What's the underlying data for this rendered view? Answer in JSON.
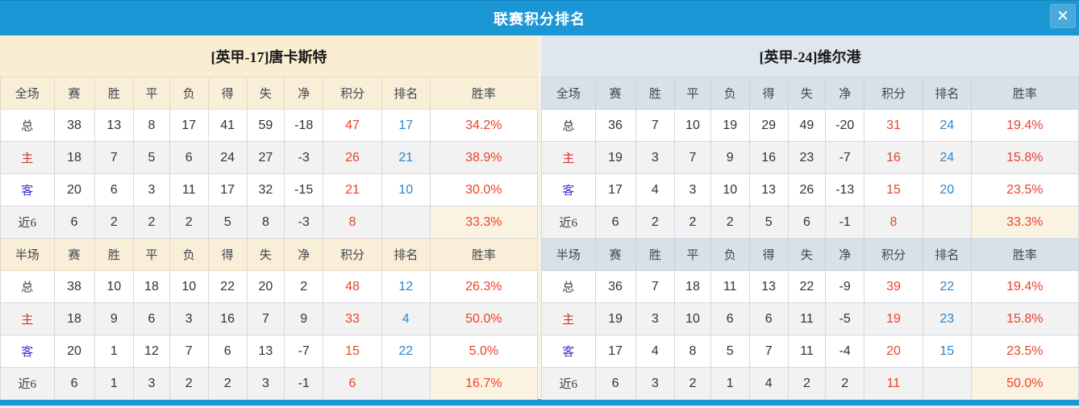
{
  "window": {
    "title": "联赛积分排名",
    "close_glyph": "✕"
  },
  "colors": {
    "titlebar_blue": "#1b97d5",
    "close_button_blue": "#49a9da",
    "home_theme_header": "#f9edd2",
    "away_theme_header": "#dfe7ee",
    "points_red": "#e8432c",
    "rank_blue": "#2e86c8",
    "home_label_red": "#d43430",
    "away_label_blue": "#3a3ac8",
    "row_stripe": "#f2f2f2",
    "recent_rate_cream": "#fbf3e1"
  },
  "stat_columns": [
    "赛",
    "胜",
    "平",
    "负",
    "得",
    "失",
    "净",
    "积分",
    "排名",
    "胜率"
  ],
  "teams": [
    {
      "name": "[英甲-17]唐卡斯特",
      "theme": "home",
      "sections": [
        {
          "title": "全场",
          "rows": [
            {
              "label": "总",
              "type": "total",
              "stats": [
                "38",
                "13",
                "8",
                "17",
                "41",
                "59",
                "-18"
              ],
              "points": "47",
              "rank": "17",
              "rate": "34.2%"
            },
            {
              "label": "主",
              "type": "home",
              "stats": [
                "18",
                "7",
                "5",
                "6",
                "24",
                "27",
                "-3"
              ],
              "points": "26",
              "rank": "21",
              "rate": "38.9%"
            },
            {
              "label": "客",
              "type": "away",
              "stats": [
                "20",
                "6",
                "3",
                "11",
                "17",
                "32",
                "-15"
              ],
              "points": "21",
              "rank": "10",
              "rate": "30.0%"
            },
            {
              "label": "近6",
              "type": "recent",
              "stats": [
                "6",
                "2",
                "2",
                "2",
                "5",
                "8",
                "-3"
              ],
              "points": "8",
              "rank": "",
              "rate": "33.3%"
            }
          ]
        },
        {
          "title": "半场",
          "rows": [
            {
              "label": "总",
              "type": "total",
              "stats": [
                "38",
                "10",
                "18",
                "10",
                "22",
                "20",
                "2"
              ],
              "points": "48",
              "rank": "12",
              "rate": "26.3%"
            },
            {
              "label": "主",
              "type": "home",
              "stats": [
                "18",
                "9",
                "6",
                "3",
                "16",
                "7",
                "9"
              ],
              "points": "33",
              "rank": "4",
              "rate": "50.0%"
            },
            {
              "label": "客",
              "type": "away",
              "stats": [
                "20",
                "1",
                "12",
                "7",
                "6",
                "13",
                "-7"
              ],
              "points": "15",
              "rank": "22",
              "rate": "5.0%"
            },
            {
              "label": "近6",
              "type": "recent",
              "stats": [
                "6",
                "1",
                "3",
                "2",
                "2",
                "3",
                "-1"
              ],
              "points": "6",
              "rank": "",
              "rate": "16.7%"
            }
          ]
        }
      ]
    },
    {
      "name": "[英甲-24]维尔港",
      "theme": "away",
      "sections": [
        {
          "title": "全场",
          "rows": [
            {
              "label": "总",
              "type": "total",
              "stats": [
                "36",
                "7",
                "10",
                "19",
                "29",
                "49",
                "-20"
              ],
              "points": "31",
              "rank": "24",
              "rate": "19.4%"
            },
            {
              "label": "主",
              "type": "home",
              "stats": [
                "19",
                "3",
                "7",
                "9",
                "16",
                "23",
                "-7"
              ],
              "points": "16",
              "rank": "24",
              "rate": "15.8%"
            },
            {
              "label": "客",
              "type": "away",
              "stats": [
                "17",
                "4",
                "3",
                "10",
                "13",
                "26",
                "-13"
              ],
              "points": "15",
              "rank": "20",
              "rate": "23.5%"
            },
            {
              "label": "近6",
              "type": "recent",
              "stats": [
                "6",
                "2",
                "2",
                "2",
                "5",
                "6",
                "-1"
              ],
              "points": "8",
              "rank": "",
              "rate": "33.3%"
            }
          ]
        },
        {
          "title": "半场",
          "rows": [
            {
              "label": "总",
              "type": "total",
              "stats": [
                "36",
                "7",
                "18",
                "11",
                "13",
                "22",
                "-9"
              ],
              "points": "39",
              "rank": "22",
              "rate": "19.4%"
            },
            {
              "label": "主",
              "type": "home",
              "stats": [
                "19",
                "3",
                "10",
                "6",
                "6",
                "11",
                "-5"
              ],
              "points": "19",
              "rank": "23",
              "rate": "15.8%"
            },
            {
              "label": "客",
              "type": "away",
              "stats": [
                "17",
                "4",
                "8",
                "5",
                "7",
                "11",
                "-4"
              ],
              "points": "20",
              "rank": "15",
              "rate": "23.5%"
            },
            {
              "label": "近6",
              "type": "recent",
              "stats": [
                "6",
                "3",
                "2",
                "1",
                "4",
                "2",
                "2"
              ],
              "points": "11",
              "rank": "",
              "rate": "50.0%"
            }
          ]
        }
      ]
    }
  ]
}
